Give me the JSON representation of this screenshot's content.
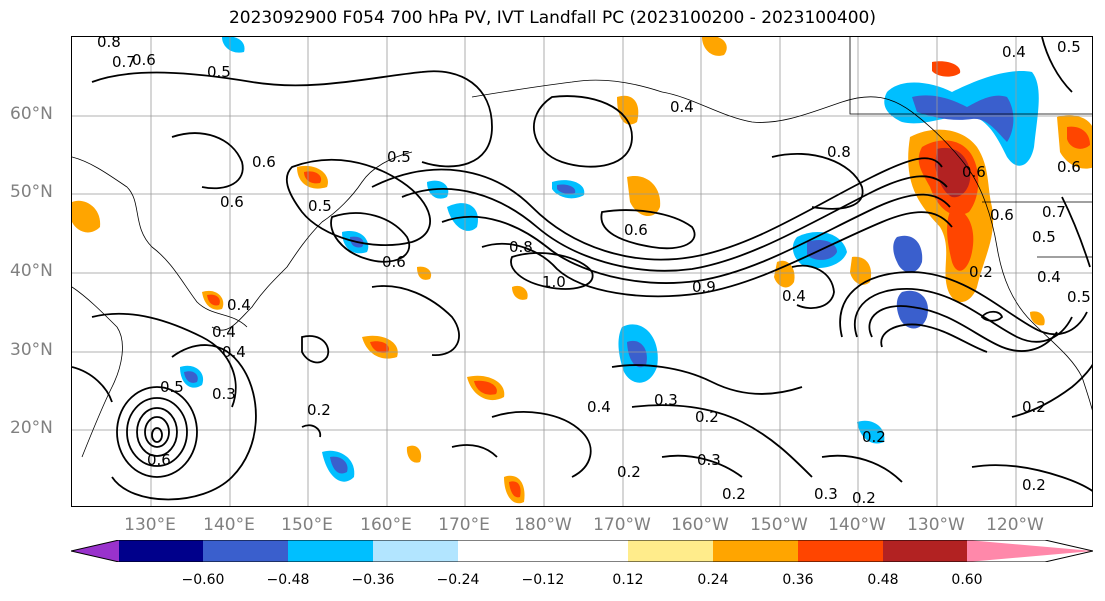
{
  "title": "2023092900 F054 700 hPa PV, IVT Landfall PC (2023100200 - 2023100400)",
  "lat_labels": [
    "60°N",
    "50°N",
    "40°N",
    "30°N",
    "20°N"
  ],
  "lon_labels": [
    "130°E",
    "140°E",
    "150°E",
    "160°E",
    "170°E",
    "180°W",
    "170°W",
    "160°W",
    "150°W",
    "140°W",
    "130°W",
    "120°W"
  ],
  "colorbar": {
    "colors": [
      "#9932CC",
      "#00008B",
      "#3A5FCD",
      "#00BFFF",
      "#B2E5FF",
      "#FFFFFF",
      "#FFEC8B",
      "#FFA500",
      "#FF4500",
      "#B22222",
      "#FF88AA"
    ],
    "tick_labels": [
      "−0.60",
      "−0.48",
      "−0.36",
      "−0.24",
      "−0.12",
      "0.12",
      "0.24",
      "0.36",
      "0.48",
      "0.60"
    ]
  },
  "contour_labels": [
    "0.8",
    "0.7",
    "0.6",
    "0.5",
    "0.6",
    "0.5",
    "0.6",
    "0.4",
    "0.5",
    "0.6",
    "0.4",
    "0.8",
    "0.6",
    "0.8",
    "1.0",
    "0.9",
    "0.4",
    "0.4",
    "0.5",
    "0.6",
    "0.3",
    "0.4",
    "0.3",
    "0.2",
    "0.2",
    "0.3",
    "0.2",
    "0.3",
    "0.2",
    "0.2",
    "0.2",
    "0.4",
    "0.5",
    "0.6",
    "0.2",
    "0.4",
    "0.6",
    "0.5",
    "0.2",
    "0.6",
    "0.2",
    "0.4",
    "0.5",
    "0.7"
  ]
}
